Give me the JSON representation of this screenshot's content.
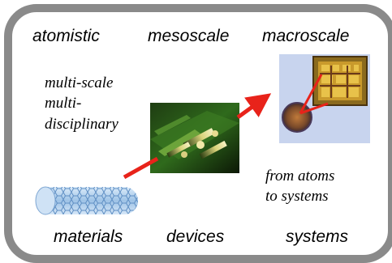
{
  "top_labels": {
    "left": "atomistic",
    "middle": "mesoscale",
    "right": "macroscale"
  },
  "bottom_labels": {
    "left": "materials",
    "middle": "devices",
    "right": "systems"
  },
  "left_caption": {
    "line1": "multi-scale",
    "line2": "multi-",
    "line3": "disciplinary"
  },
  "right_caption": {
    "line1": "from atoms",
    "line2": "to systems"
  },
  "colors": {
    "frame": "#8a8a8a",
    "arrow": "#e8231a",
    "panel_bg": "#c8d4ee",
    "tube": "#9fc3e6"
  },
  "images": [
    "nanotube-image",
    "nanodevice-image",
    "chip-system-image"
  ]
}
